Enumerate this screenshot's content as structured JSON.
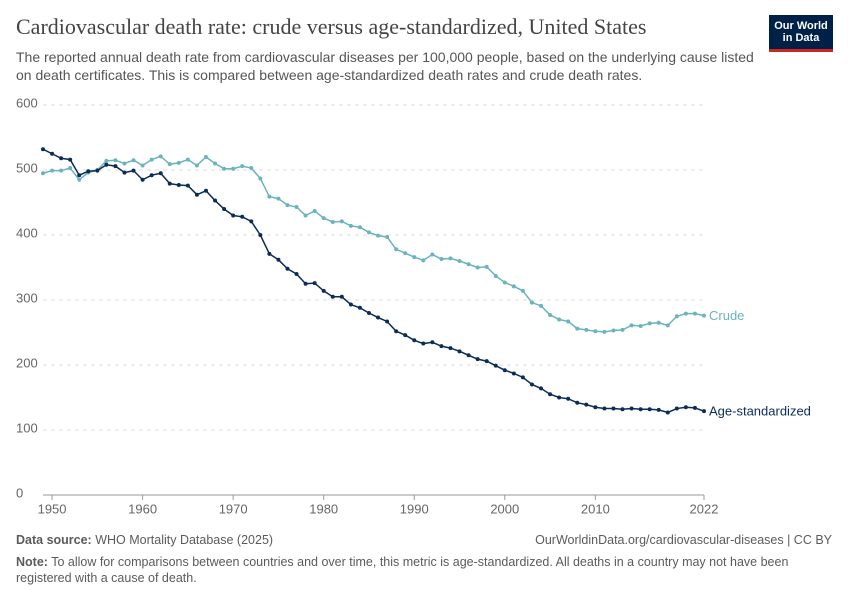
{
  "logo": [
    "Our World",
    "in Data"
  ],
  "chart_data": {
    "type": "line",
    "title": "Cardiovascular death rate: crude versus age-standardized, United States",
    "subtitle": "The reported annual death rate from cardiovascular diseases per 100,000 people, based on the underlying cause listed on death certificates. This is compared between age-standardized death rates and crude death rates.",
    "x": [
      1949,
      1950,
      1951,
      1952,
      1953,
      1954,
      1955,
      1956,
      1957,
      1958,
      1959,
      1960,
      1961,
      1962,
      1963,
      1964,
      1965,
      1966,
      1967,
      1968,
      1969,
      1970,
      1971,
      1972,
      1973,
      1974,
      1975,
      1976,
      1977,
      1978,
      1979,
      1980,
      1981,
      1982,
      1983,
      1984,
      1985,
      1986,
      1987,
      1988,
      1989,
      1990,
      1991,
      1992,
      1993,
      1994,
      1995,
      1996,
      1997,
      1998,
      1999,
      2000,
      2001,
      2002,
      2003,
      2004,
      2005,
      2006,
      2007,
      2008,
      2009,
      2010,
      2011,
      2012,
      2013,
      2014,
      2015,
      2016,
      2017,
      2018,
      2019,
      2020,
      2021,
      2022
    ],
    "series": [
      {
        "name": "Crude",
        "color": "#6bb3bd",
        "values": [
          495,
          499,
          499,
          503,
          485,
          496,
          500,
          514,
          515,
          510,
          515,
          507,
          516,
          521,
          509,
          511,
          516,
          507,
          520,
          510,
          502,
          502,
          506,
          503,
          487,
          459,
          456,
          446,
          443,
          430,
          437,
          426,
          420,
          421,
          414,
          412,
          404,
          399,
          397,
          378,
          372,
          366,
          361,
          370,
          363,
          364,
          360,
          355,
          350,
          351,
          337,
          327,
          321,
          314,
          296,
          291,
          277,
          270,
          267,
          256,
          254,
          252,
          251,
          253,
          254,
          261,
          260,
          264,
          265,
          261,
          275,
          279,
          279,
          276
        ]
      },
      {
        "name": "Age-standardized",
        "color": "#0b2c57",
        "values": [
          532,
          525,
          518,
          516,
          492,
          498,
          499,
          508,
          506,
          496,
          499,
          485,
          492,
          495,
          479,
          477,
          476,
          462,
          468,
          453,
          440,
          430,
          428,
          421,
          400,
          371,
          362,
          348,
          340,
          325,
          326,
          314,
          305,
          305,
          293,
          288,
          280,
          273,
          267,
          252,
          246,
          238,
          233,
          235,
          229,
          226,
          221,
          215,
          209,
          206,
          199,
          192,
          187,
          181,
          170,
          164,
          155,
          150,
          148,
          142,
          139,
          135,
          133,
          133,
          132,
          133,
          132,
          132,
          131,
          127,
          133,
          135,
          134,
          129
        ]
      }
    ],
    "xlim": [
      1949,
      2022
    ],
    "xticks": [
      1950,
      1960,
      1970,
      1980,
      1990,
      2000,
      2010,
      2022
    ],
    "ylim": [
      0,
      600
    ],
    "yticks": [
      0,
      100,
      200,
      300,
      400,
      500,
      600
    ],
    "grid": true,
    "source_label": "Data source:",
    "source": "WHO Mortality Database (2025)",
    "url": "OurWorldinData.org/cardiovascular-diseases | CC BY",
    "note_label": "Note:",
    "note": "To allow for comparisons between countries and over time, this metric is age-standardized. All deaths in a country may not have been registered with a cause of death."
  }
}
